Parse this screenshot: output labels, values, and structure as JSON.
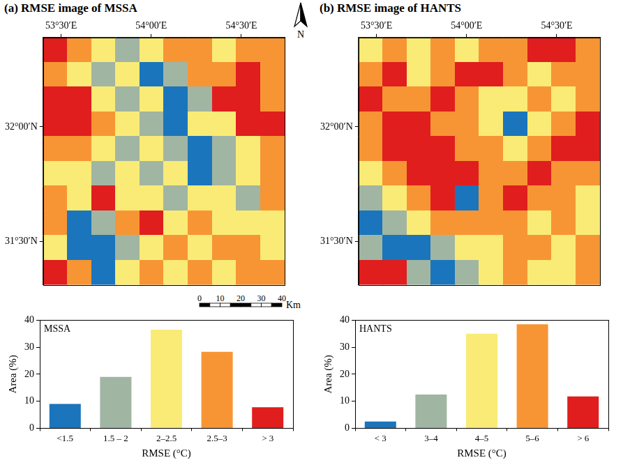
{
  "chart_data": [
    {
      "type": "heatmap",
      "title": "(a) RMSE image of MSSA",
      "xlim": [
        53.4,
        54.74
      ],
      "xticks": [
        {
          "value": 53.5,
          "label": "53°30′E"
        },
        {
          "value": 54,
          "label": "54°00′E"
        },
        {
          "value": 54.5,
          "label": "54°30′E"
        }
      ],
      "ylim": [
        31.31,
        32.39
      ],
      "yticks": [
        {
          "value": 31.5,
          "label": "31°30′N"
        },
        {
          "value": 32,
          "label": "32°00′N"
        }
      ],
      "colors": [
        "#1a75bc",
        "#a1b5a3",
        "#f9eb76",
        "#f79534",
        "#e01e1e"
      ],
      "cells": [
        [
          4,
          3,
          2,
          1,
          2,
          3,
          3,
          2,
          3,
          3
        ],
        [
          3,
          2,
          1,
          2,
          0,
          1,
          3,
          3,
          4,
          3
        ],
        [
          4,
          4,
          2,
          1,
          2,
          0,
          1,
          4,
          4,
          3
        ],
        [
          4,
          4,
          3,
          2,
          1,
          0,
          2,
          2,
          4,
          4
        ],
        [
          3,
          3,
          2,
          1,
          2,
          1,
          0,
          1,
          2,
          3
        ],
        [
          2,
          2,
          1,
          2,
          1,
          2,
          0,
          1,
          2,
          3
        ],
        [
          3,
          2,
          4,
          2,
          2,
          1,
          2,
          2,
          1,
          3
        ],
        [
          3,
          0,
          1,
          3,
          4,
          2,
          3,
          2,
          2,
          2
        ],
        [
          2,
          0,
          0,
          1,
          2,
          3,
          2,
          3,
          3,
          2
        ],
        [
          4,
          3,
          0,
          2,
          3,
          2,
          3,
          2,
          3,
          3
        ]
      ],
      "north_arrow_label": "N",
      "scale_bar": {
        "ticks": [
          0,
          10,
          20,
          30,
          40
        ],
        "unit": "Km"
      }
    },
    {
      "type": "bar",
      "annotation": "MSSA",
      "categories": [
        "<1.5",
        "1.5 – 2",
        "2–2.5",
        "2.5–3",
        "> 3"
      ],
      "values": [
        9,
        19,
        36.5,
        28.3,
        7.8
      ],
      "colors": [
        "#1a75bc",
        "#a1b5a3",
        "#f9eb76",
        "#f79534",
        "#e01e1e"
      ],
      "x_label": "RMSE (°C)",
      "y_label": "Area (%)",
      "ylim": [
        0,
        40
      ],
      "yticks": [
        0,
        10,
        20,
        30,
        40
      ],
      "grid": false
    },
    {
      "type": "heatmap",
      "title": "(b) RMSE image of HANTS",
      "xlim": [
        53.4,
        54.74
      ],
      "xticks": [
        {
          "value": 53.5,
          "label": "53°30′E"
        },
        {
          "value": 54,
          "label": "54°00′E"
        },
        {
          "value": 54.5,
          "label": "54°30′E"
        }
      ],
      "ylim": [
        31.31,
        32.39
      ],
      "yticks": [
        {
          "value": 31.5,
          "label": "31°30′N"
        },
        {
          "value": 32,
          "label": "32°00′N"
        }
      ],
      "colors": [
        "#1a75bc",
        "#a1b5a3",
        "#f9eb76",
        "#f79534",
        "#e01e1e"
      ],
      "cells": [
        [
          2,
          3,
          2,
          3,
          2,
          3,
          3,
          4,
          4,
          3
        ],
        [
          3,
          4,
          2,
          3,
          4,
          4,
          3,
          2,
          3,
          3
        ],
        [
          4,
          3,
          3,
          4,
          3,
          2,
          2,
          3,
          2,
          3
        ],
        [
          3,
          4,
          4,
          3,
          3,
          2,
          0,
          2,
          3,
          4
        ],
        [
          3,
          4,
          4,
          4,
          3,
          3,
          2,
          3,
          4,
          4
        ],
        [
          2,
          3,
          4,
          4,
          4,
          3,
          3,
          4,
          3,
          3
        ],
        [
          1,
          2,
          3,
          4,
          0,
          3,
          4,
          3,
          3,
          2
        ],
        [
          0,
          1,
          2,
          3,
          3,
          3,
          3,
          2,
          3,
          2
        ],
        [
          1,
          0,
          0,
          1,
          2,
          2,
          3,
          3,
          2,
          3
        ],
        [
          4,
          4,
          1,
          0,
          1,
          2,
          3,
          2,
          2,
          3
        ]
      ]
    },
    {
      "type": "bar",
      "annotation": "HANTS",
      "categories": [
        "< 3",
        "3–4",
        "4–5",
        "5–6",
        "> 6"
      ],
      "values": [
        2.5,
        12.5,
        35,
        38.5,
        11.8
      ],
      "colors": [
        "#1a75bc",
        "#a1b5a3",
        "#f9eb76",
        "#f79534",
        "#e01e1e"
      ],
      "x_label": "RMSE (°C)",
      "y_label": "Area (%)",
      "ylim": [
        0,
        40
      ],
      "yticks": [
        0,
        10,
        20,
        30,
        40
      ],
      "grid": false
    }
  ]
}
